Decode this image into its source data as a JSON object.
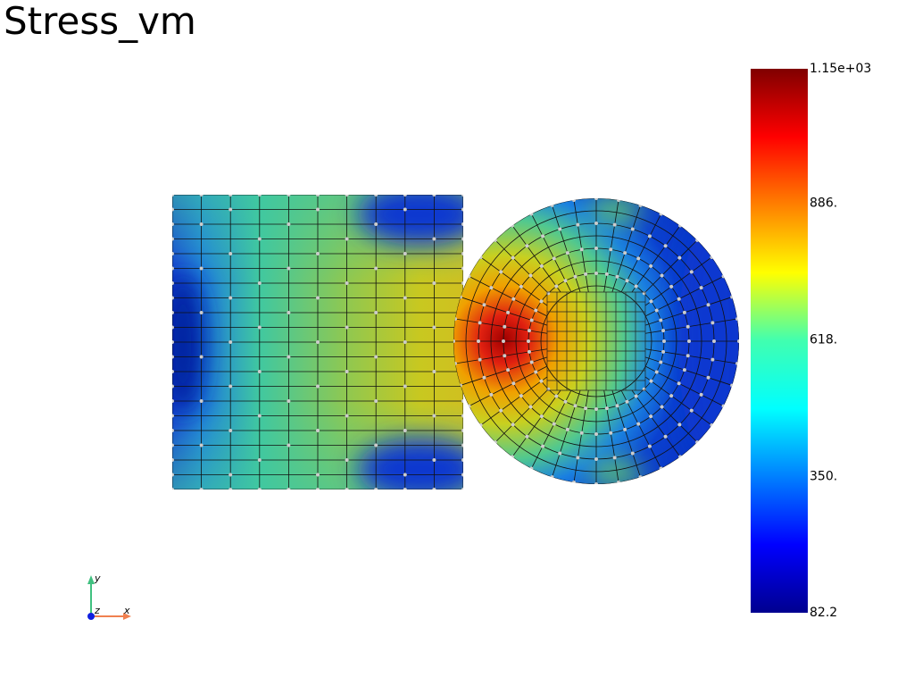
{
  "title": "Stress_vm",
  "scalar_bar": {
    "range": [
      82.2,
      1150
    ],
    "ticks": [
      {
        "value": 1150,
        "label": "1.15e+03"
      },
      {
        "value": 886,
        "label": "886."
      },
      {
        "value": 618,
        "label": "618."
      },
      {
        "value": 350,
        "label": "350."
      },
      82.2
    ]
  },
  "axes": {
    "x": "x",
    "y": "y",
    "z": "z"
  }
}
